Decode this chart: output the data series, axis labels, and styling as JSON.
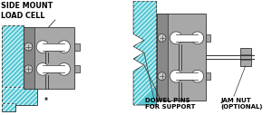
{
  "bg_color": "#ffffff",
  "hatch_color": "#55c8d4",
  "cell_body_color": "#a8a8a8",
  "cell_light_color": "#c8c8c8",
  "cell_dark_color": "#888888",
  "line_color": "#303030",
  "text_color": "#000000",
  "white": "#ffffff",
  "label_side_mount": "SIDE MOUNT\nLOAD CELL",
  "label_dowel": "DOWEL PINS\nFOR SUPPORT",
  "label_jam": "JAM NUT\n(OPTIONAL)",
  "figsize": [
    3.0,
    1.27
  ],
  "dpi": 100
}
